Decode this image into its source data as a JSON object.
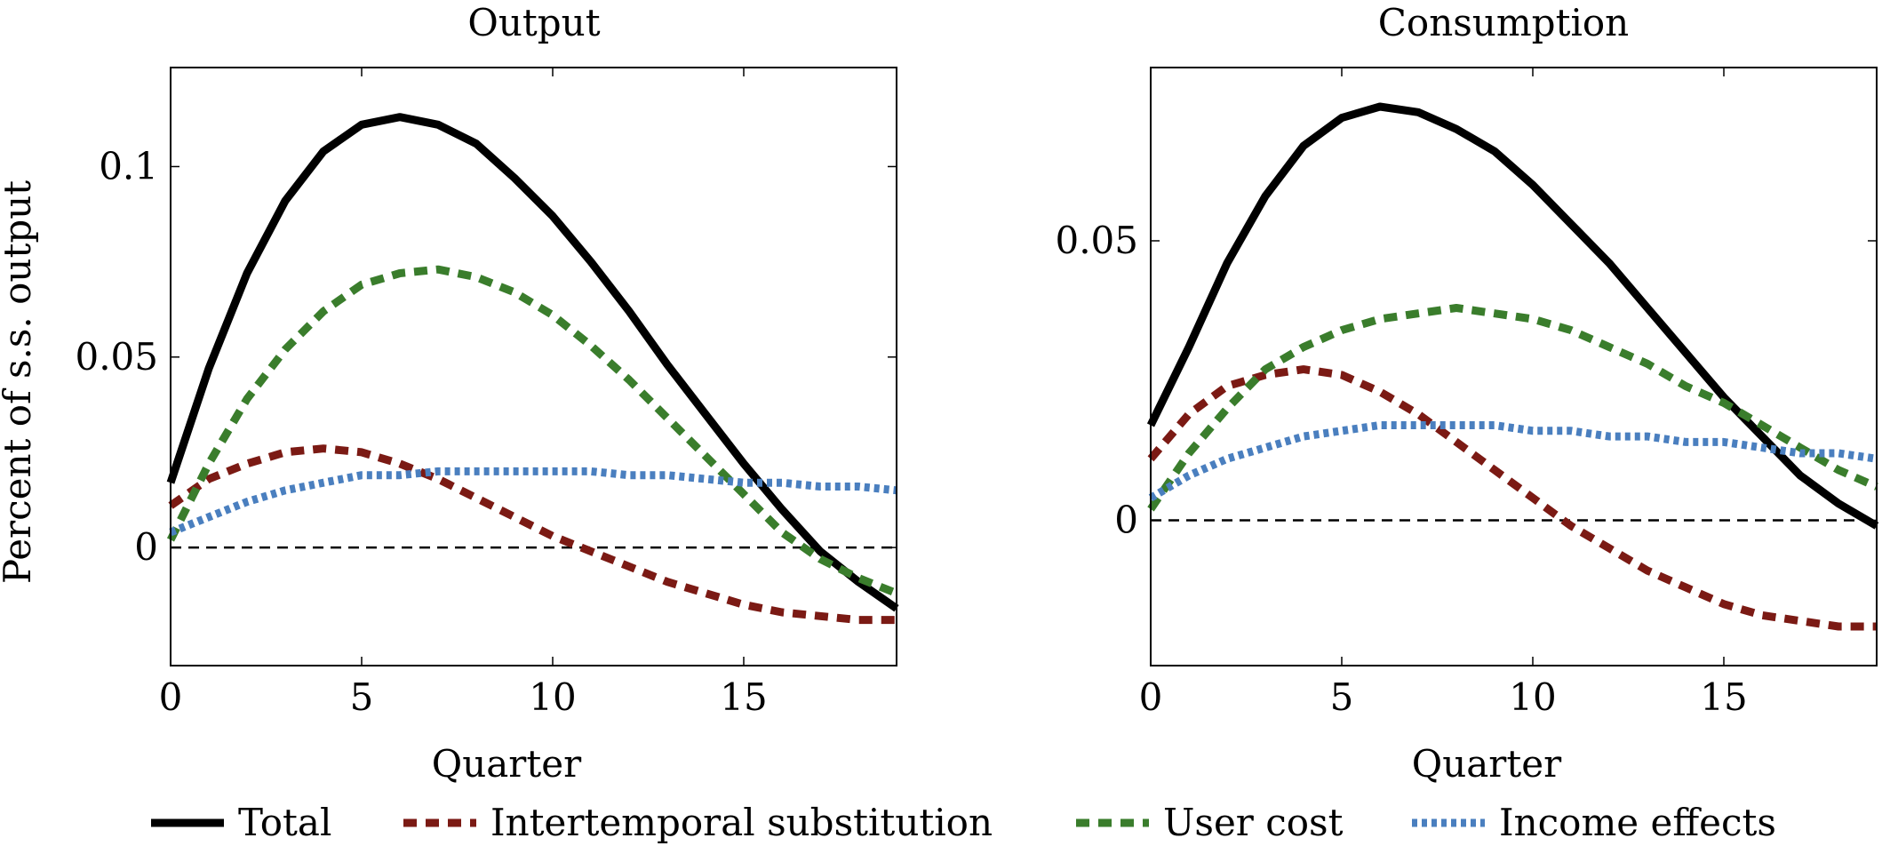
{
  "chart_data": [
    {
      "type": "line",
      "title": "Output",
      "xlabel": "Quarter",
      "ylabel": "Percent of s.s. output",
      "xlim": [
        0,
        19
      ],
      "ylim": [
        -0.031,
        0.126
      ],
      "xticks": [
        0,
        5,
        10,
        15
      ],
      "xtick_labels": [
        "0",
        "5",
        "10",
        "15"
      ],
      "yticks": [
        0,
        0.05,
        0.1
      ],
      "ytick_labels": [
        "0",
        "0.05",
        "0.1"
      ],
      "zero_line": 0,
      "grid": false,
      "x": [
        0,
        1,
        2,
        3,
        4,
        5,
        6,
        7,
        8,
        9,
        10,
        11,
        12,
        13,
        14,
        15,
        16,
        17,
        18,
        19
      ],
      "series": [
        {
          "name": "Total",
          "values": [
            0.017,
            0.047,
            0.072,
            0.091,
            0.104,
            0.111,
            0.113,
            0.111,
            0.106,
            0.097,
            0.087,
            0.075,
            0.062,
            0.048,
            0.035,
            0.022,
            0.01,
            -0.001,
            -0.009,
            -0.016
          ]
        },
        {
          "name": "Intertemporal substitution",
          "values": [
            0.011,
            0.018,
            0.022,
            0.025,
            0.026,
            0.025,
            0.022,
            0.018,
            0.013,
            0.008,
            0.003,
            -0.001,
            -0.005,
            -0.009,
            -0.012,
            -0.015,
            -0.017,
            -0.018,
            -0.019,
            -0.019
          ]
        },
        {
          "name": "User cost",
          "values": [
            0.002,
            0.022,
            0.039,
            0.052,
            0.062,
            0.069,
            0.072,
            0.073,
            0.071,
            0.067,
            0.061,
            0.053,
            0.044,
            0.034,
            0.024,
            0.014,
            0.004,
            -0.003,
            -0.008,
            -0.012
          ]
        },
        {
          "name": "Income effects",
          "values": [
            0.004,
            0.008,
            0.012,
            0.015,
            0.017,
            0.019,
            0.019,
            0.02,
            0.02,
            0.02,
            0.02,
            0.02,
            0.019,
            0.019,
            0.018,
            0.017,
            0.017,
            0.016,
            0.016,
            0.015
          ]
        }
      ]
    },
    {
      "type": "line",
      "title": "Consumption",
      "xlabel": "Quarter",
      "ylabel": "",
      "xlim": [
        0,
        19
      ],
      "ylim": [
        -0.026,
        0.081
      ],
      "xticks": [
        0,
        5,
        10,
        15
      ],
      "xtick_labels": [
        "0",
        "5",
        "10",
        "15"
      ],
      "yticks": [
        0,
        0.05
      ],
      "ytick_labels": [
        "0",
        "0.05"
      ],
      "zero_line": 0,
      "grid": false,
      "x": [
        0,
        1,
        2,
        3,
        4,
        5,
        6,
        7,
        8,
        9,
        10,
        11,
        12,
        13,
        14,
        15,
        16,
        17,
        18,
        19
      ],
      "series": [
        {
          "name": "Total",
          "values": [
            0.017,
            0.031,
            0.046,
            0.058,
            0.067,
            0.072,
            0.074,
            0.073,
            0.07,
            0.066,
            0.06,
            0.053,
            0.046,
            0.038,
            0.03,
            0.022,
            0.015,
            0.008,
            0.003,
            -0.001
          ]
        },
        {
          "name": "Intertemporal substitution",
          "values": [
            0.011,
            0.019,
            0.024,
            0.026,
            0.027,
            0.026,
            0.023,
            0.019,
            0.014,
            0.009,
            0.004,
            -0.001,
            -0.005,
            -0.009,
            -0.012,
            -0.015,
            -0.017,
            -0.018,
            -0.019,
            -0.019
          ]
        },
        {
          "name": "User cost",
          "values": [
            0.002,
            0.012,
            0.02,
            0.027,
            0.031,
            0.034,
            0.036,
            0.037,
            0.038,
            0.037,
            0.036,
            0.034,
            0.031,
            0.028,
            0.024,
            0.021,
            0.017,
            0.013,
            0.009,
            0.006
          ]
        },
        {
          "name": "Income effects",
          "values": [
            0.004,
            0.008,
            0.011,
            0.013,
            0.015,
            0.016,
            0.017,
            0.017,
            0.017,
            0.017,
            0.016,
            0.016,
            0.015,
            0.015,
            0.014,
            0.014,
            0.013,
            0.012,
            0.012,
            0.011
          ]
        }
      ]
    }
  ],
  "legend": {
    "position": "bottom",
    "items": [
      {
        "label": "Total",
        "color": "#000000",
        "style": "solid"
      },
      {
        "label": "Intertemporal substitution",
        "color": "#7b1a14",
        "style": "dashed"
      },
      {
        "label": "User cost",
        "color": "#3a7d2c",
        "style": "dashed"
      },
      {
        "label": "Income effects",
        "color": "#4a7fbf",
        "style": "dotted"
      }
    ]
  }
}
